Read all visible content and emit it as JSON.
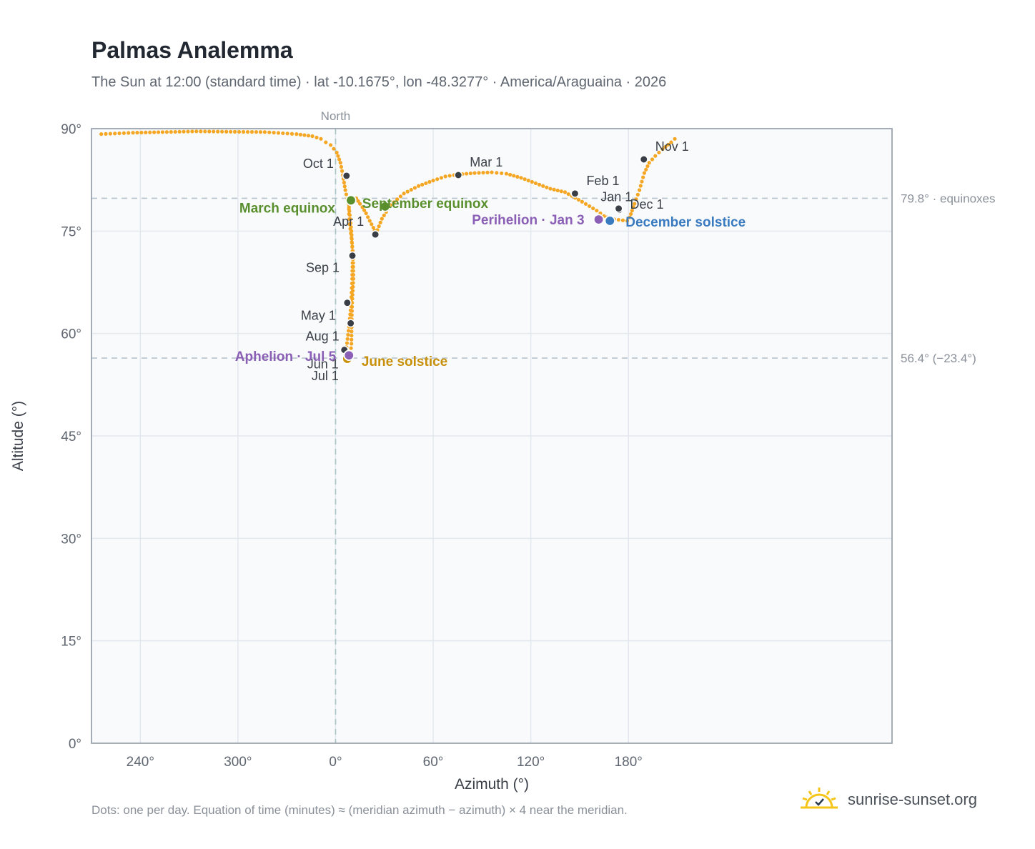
{
  "header": {
    "title": "Palmas Analemma",
    "subtitle": "The Sun at 12:00 (standard time) · lat -10.1675°, lon -48.3277° · America/Araguaina · 2026"
  },
  "footer": {
    "note": "Dots: one per day. Equation of time (minutes) ≈ (meridian azimuth − azimuth) × 4 near the meridian.",
    "brand": "sunrise-sunset.org"
  },
  "colors": {
    "curve": "#f5a623",
    "month_marker": "#3a3f47",
    "equinox": "#5a8f2e",
    "june_solstice": "#c8900a",
    "december_solstice": "#3a7bc0",
    "apsis": "#8a5fb5",
    "plot_bg": "#f8fafc",
    "grid": "#e3e8ee",
    "reference_line": "#b7c3cc",
    "north_line": "#a9c4c4"
  },
  "chart_data": {
    "type": "scatter",
    "title": "Palmas Analemma",
    "xlabel": "Azimuth (°)",
    "ylabel": "Altitude (°)",
    "xlim": [
      -100,
      228
    ],
    "ylim": [
      0,
      90
    ],
    "x_ticks": [
      {
        "value": -100,
        "label": ""
      },
      {
        "value": -80,
        "label": "240°"
      },
      {
        "value": -40,
        "label": "300°"
      },
      {
        "value": 0,
        "label": "0°"
      },
      {
        "value": 40,
        "label": "60°"
      },
      {
        "value": 80,
        "label": "120°"
      },
      {
        "value": 120,
        "label": "180°"
      }
    ],
    "y_ticks": [
      {
        "value": 0,
        "label": "0°"
      },
      {
        "value": 15,
        "label": "15°"
      },
      {
        "value": 30,
        "label": "30°"
      },
      {
        "value": 45,
        "label": "45°"
      },
      {
        "value": 60,
        "label": "60°"
      },
      {
        "value": 75,
        "label": "75°"
      },
      {
        "value": 90,
        "label": "90°"
      }
    ],
    "grid": true,
    "reference_lines": [
      {
        "y": 79.8,
        "label": "79.8° · equinoxes"
      },
      {
        "y": 56.4,
        "label": "56.4° (−23.4°)"
      }
    ],
    "north_line": {
      "x": 0,
      "label": "North"
    },
    "analemma_path": [
      [
        112.4,
        76.8
      ],
      [
        119.5,
        76.5
      ],
      [
        120.5,
        77.0
      ],
      [
        121.5,
        78.0
      ],
      [
        122.5,
        79.0
      ],
      [
        124.5,
        81.0
      ],
      [
        126.5,
        83.5
      ],
      [
        128.5,
        85.0
      ],
      [
        131,
        86.0
      ],
      [
        134,
        87.0
      ],
      [
        137.5,
        88.0
      ],
      [
        139,
        88.5
      ],
      [
        139.5,
        88.8
      ],
      [
        -96,
        89.2
      ],
      [
        -83,
        89.4
      ],
      [
        -57,
        89.6
      ],
      [
        -29,
        89.5
      ],
      [
        -16,
        89.2
      ],
      [
        -9.5,
        88.9
      ],
      [
        -6,
        88.5
      ],
      [
        -4,
        88.0
      ],
      [
        -2,
        87.6
      ],
      [
        0.5,
        86.5
      ],
      [
        2.0,
        85.0
      ],
      [
        3.0,
        83.2
      ],
      [
        4.0,
        81.0
      ],
      [
        5.5,
        78.5
      ],
      [
        6.5,
        75.0
      ],
      [
        7.0,
        71.5
      ],
      [
        6.8,
        68.0
      ],
      [
        6.3,
        64.0
      ],
      [
        5.5,
        61.0
      ],
      [
        4.5,
        58.0
      ],
      [
        4.0,
        57.5
      ],
      [
        4.0,
        56.3
      ],
      [
        4.8,
        56.2
      ],
      [
        5.5,
        56.4
      ],
      [
        6.2,
        57.2
      ],
      [
        6.5,
        58.5
      ],
      [
        6.6,
        61.5
      ],
      [
        6.8,
        64.5
      ],
      [
        7.3,
        68.0
      ],
      [
        7.2,
        71.5
      ],
      [
        6.5,
        74.0
      ],
      [
        5.8,
        76.0
      ],
      [
        5.5,
        77.5
      ],
      [
        5.4,
        79.6
      ],
      [
        6.5,
        80.0
      ],
      [
        8.5,
        79.8
      ],
      [
        10.0,
        79.0
      ],
      [
        11.0,
        78.5
      ],
      [
        12.5,
        77.6
      ],
      [
        14.0,
        76.5
      ],
      [
        15.5,
        75.5
      ],
      [
        16.5,
        74.6
      ],
      [
        19.0,
        76.8
      ],
      [
        22.5,
        78.8
      ],
      [
        28.0,
        80.5
      ],
      [
        34.0,
        81.6
      ],
      [
        40.0,
        82.4
      ],
      [
        45.0,
        83.0
      ],
      [
        50.3,
        83.3
      ],
      [
        57,
        83.5
      ],
      [
        64,
        83.6
      ],
      [
        70,
        83.4
      ],
      [
        76,
        82.8
      ],
      [
        82,
        82.0
      ],
      [
        88,
        81.2
      ],
      [
        94,
        80.7
      ],
      [
        101,
        79.3
      ],
      [
        107,
        78.0
      ],
      [
        110,
        77.2
      ],
      [
        112.4,
        76.8
      ]
    ],
    "month_markers": [
      {
        "label": "Jan 1",
        "x": 116.2,
        "y": 78.1
      },
      {
        "label": "Feb 1",
        "x": 98.1,
        "y": 80.5
      },
      {
        "label": "Mar 1",
        "x": 50.3,
        "y": 83.2
      },
      {
        "label": "Apr 1",
        "x": 16.3,
        "y": 74.5
      },
      {
        "label": "May 1",
        "x": 4.8,
        "y": 64.5
      },
      {
        "label": "Jun 1",
        "x": 3.6,
        "y": 57.6
      },
      {
        "label": "Jul 1",
        "x": 4.8,
        "y": 56.1
      },
      {
        "label": "Aug 1",
        "x": 6.2,
        "y": 61.5
      },
      {
        "label": "Sep 1",
        "x": 6.9,
        "y": 71.4
      },
      {
        "label": "Oct 1",
        "x": 4.5,
        "y": 83.1
      },
      {
        "label": "Nov 1",
        "x": 126.3,
        "y": 85.5
      },
      {
        "label": "Dec 1",
        "x": 116.0,
        "y": 78.3
      }
    ],
    "events": [
      {
        "label": "March equinox",
        "x": 6.3,
        "y": 79.5,
        "color": "#5a8f2e"
      },
      {
        "label": "September equinox",
        "x": 20.3,
        "y": 78.6,
        "color": "#5a8f2e"
      },
      {
        "label": "June solstice",
        "x": 4.8,
        "y": 56.3,
        "color": "#c8900a"
      },
      {
        "label": "December solstice",
        "x": 112.4,
        "y": 76.5,
        "color": "#3a7bc0"
      },
      {
        "label": "Perihelion · Jan 3",
        "x": 107.8,
        "y": 76.7,
        "color": "#8a5fb5"
      },
      {
        "label": "Aphelion · Jul 5",
        "x": 5.5,
        "y": 56.8,
        "color": "#8a5fb5"
      }
    ]
  }
}
